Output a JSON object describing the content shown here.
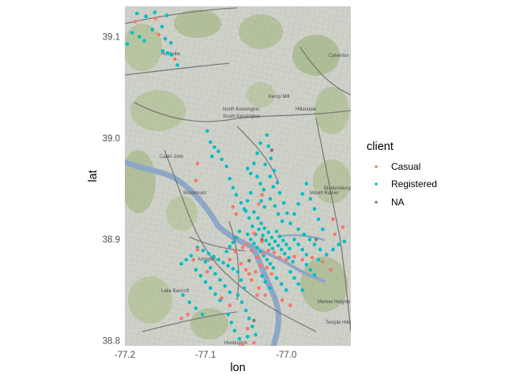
{
  "chart_data": {
    "type": "scatter",
    "background": "street map tiles (Washington, DC area)",
    "xlabel": "lon",
    "ylabel": "lat",
    "xlim": [
      -77.2,
      -76.92
    ],
    "ylim": [
      38.795,
      39.13
    ],
    "x_ticks": [
      {
        "value": -77.2,
        "label": "-77.2"
      },
      {
        "value": -77.1,
        "label": "-77.1"
      },
      {
        "value": -77.0,
        "label": "-77.0"
      }
    ],
    "y_ticks": [
      {
        "value": 38.8,
        "label": "38.8"
      },
      {
        "value": 38.9,
        "label": "38.9"
      },
      {
        "value": 39.0,
        "label": "39.0"
      },
      {
        "value": 39.1,
        "label": "39.1"
      }
    ],
    "legend": {
      "title": "client",
      "position": "right",
      "entries": [
        {
          "label": "Casual",
          "color": "#F8766D"
        },
        {
          "label": "Registered",
          "color": "#00BFC4"
        },
        {
          "label": "NA",
          "color": "#7F7F7F"
        }
      ]
    },
    "map_labels": [
      "Rockville",
      "Kemp Mill",
      "Hillandale",
      "Calverton",
      "North Kensington",
      "South Kensington",
      "Cabin John",
      "Brookmont",
      "Mount Rainier",
      "Bladensburg",
      "Arlington",
      "Lake Barcroft",
      "Marlow Heights",
      "Temple Hills",
      "Huntington"
    ],
    "series": [
      {
        "name": "Registered",
        "color": "#00BFC4",
        "points": [
          [
            -77.185,
            39.123
          ],
          [
            -77.174,
            39.12
          ],
          [
            -77.163,
            39.124
          ],
          [
            -77.148,
            39.121
          ],
          [
            -77.191,
            39.104
          ],
          [
            -77.182,
            39.1
          ],
          [
            -77.176,
            39.096
          ],
          [
            -77.166,
            39.107
          ],
          [
            -77.154,
            39.11
          ],
          [
            -77.15,
            39.098
          ],
          [
            -77.143,
            39.094
          ],
          [
            -77.153,
            39.086
          ],
          [
            -77.147,
            39.084
          ],
          [
            -77.142,
            39.082
          ],
          [
            -77.135,
            39.072
          ],
          [
            -77.197,
            39.093
          ],
          [
            -77.098,
            39.007
          ],
          [
            -77.094,
            38.996
          ],
          [
            -77.089,
            38.991
          ],
          [
            -77.084,
            38.987
          ],
          [
            -77.092,
            38.982
          ],
          [
            -77.08,
            38.979
          ],
          [
            -77.074,
            38.972
          ],
          [
            -77.07,
            38.96
          ],
          [
            -77.066,
            38.951
          ],
          [
            -77.062,
            38.944
          ],
          [
            -77.056,
            38.936
          ],
          [
            -77.05,
            38.928
          ],
          [
            -77.046,
            38.921
          ],
          [
            -77.042,
            38.913
          ],
          [
            -77.038,
            38.905
          ],
          [
            -77.024,
            39.003
          ],
          [
            -77.022,
            38.992
          ],
          [
            -77.019,
            38.98
          ],
          [
            -77.015,
            38.968
          ],
          [
            -77.011,
            38.956
          ],
          [
            -77.008,
            38.946
          ],
          [
            -77.003,
            38.936
          ],
          [
            -76.999,
            38.926
          ],
          [
            -76.995,
            38.916
          ],
          [
            -77.036,
            38.962
          ],
          [
            -77.032,
            38.955
          ],
          [
            -77.028,
            38.949
          ],
          [
            -77.031,
            38.938
          ],
          [
            -77.027,
            38.932
          ],
          [
            -77.02,
            38.94
          ],
          [
            -77.014,
            38.933
          ],
          [
            -77.01,
            38.925
          ],
          [
            -77.005,
            38.918
          ],
          [
            -77.044,
            38.946
          ],
          [
            -77.048,
            38.938
          ],
          [
            -77.052,
            38.93
          ],
          [
            -77.04,
            38.927
          ],
          [
            -77.035,
            38.921
          ],
          [
            -77.031,
            38.916
          ],
          [
            -77.027,
            38.911
          ],
          [
            -77.022,
            38.907
          ],
          [
            -77.018,
            38.902
          ],
          [
            -77.014,
            38.898
          ],
          [
            -77.01,
            38.894
          ],
          [
            -77.006,
            38.89
          ],
          [
            -77.002,
            38.886
          ],
          [
            -76.997,
            38.882
          ],
          [
            -76.992,
            38.878
          ],
          [
            -77.048,
            38.905
          ],
          [
            -77.044,
            38.9
          ],
          [
            -77.04,
            38.896
          ],
          [
            -77.036,
            38.892
          ],
          [
            -77.032,
            38.888
          ],
          [
            -77.028,
            38.884
          ],
          [
            -77.024,
            38.88
          ],
          [
            -77.02,
            38.876
          ],
          [
            -77.016,
            38.872
          ],
          [
            -77.058,
            38.908
          ],
          [
            -77.062,
            38.902
          ],
          [
            -77.066,
            38.897
          ],
          [
            -77.07,
            38.893
          ],
          [
            -77.074,
            38.888
          ],
          [
            -77.034,
            38.91
          ],
          [
            -77.029,
            38.904
          ],
          [
            -77.025,
            38.899
          ],
          [
            -77.021,
            38.895
          ],
          [
            -77.017,
            38.891
          ],
          [
            -77.012,
            38.908
          ],
          [
            -77.008,
            38.903
          ],
          [
            -77.004,
            38.899
          ],
          [
            -77.0,
            38.895
          ],
          [
            -76.996,
            38.891
          ],
          [
            -76.99,
            38.9
          ],
          [
            -76.985,
            38.895
          ],
          [
            -76.98,
            38.89
          ],
          [
            -76.975,
            38.885
          ],
          [
            -76.985,
            38.91
          ],
          [
            -76.978,
            38.905
          ],
          [
            -76.971,
            38.9
          ],
          [
            -76.965,
            38.895
          ],
          [
            -76.958,
            38.89
          ],
          [
            -76.99,
            38.925
          ],
          [
            -76.985,
            38.935
          ],
          [
            -76.98,
            38.945
          ],
          [
            -76.975,
            38.955
          ],
          [
            -76.97,
            38.94
          ],
          [
            -76.965,
            38.93
          ],
          [
            -76.96,
            38.92
          ],
          [
            -76.955,
            38.91
          ],
          [
            -77.048,
            38.97
          ],
          [
            -77.044,
            38.965
          ],
          [
            -77.04,
            38.975
          ],
          [
            -77.036,
            38.985
          ],
          [
            -77.032,
            38.995
          ],
          [
            -77.026,
            38.974
          ],
          [
            -77.02,
            38.962
          ],
          [
            -77.016,
            38.952
          ],
          [
            -77.11,
            38.892
          ],
          [
            -77.103,
            38.889
          ],
          [
            -77.096,
            38.886
          ],
          [
            -77.09,
            38.883
          ],
          [
            -77.084,
            38.88
          ],
          [
            -77.078,
            38.877
          ],
          [
            -77.072,
            38.874
          ],
          [
            -77.066,
            38.871
          ],
          [
            -77.1,
            38.878
          ],
          [
            -77.094,
            38.872
          ],
          [
            -77.088,
            38.866
          ],
          [
            -77.082,
            38.86
          ],
          [
            -77.076,
            38.854
          ],
          [
            -77.07,
            38.848
          ],
          [
            -77.118,
            38.884
          ],
          [
            -77.124,
            38.88
          ],
          [
            -77.13,
            38.876
          ],
          [
            -77.112,
            38.87
          ],
          [
            -77.106,
            38.864
          ],
          [
            -77.1,
            38.858
          ],
          [
            -77.094,
            38.852
          ],
          [
            -77.088,
            38.846
          ],
          [
            -77.082,
            38.84
          ],
          [
            -77.128,
            38.845
          ],
          [
            -77.12,
            38.838
          ],
          [
            -77.112,
            38.832
          ],
          [
            -77.104,
            38.826
          ],
          [
            -77.06,
            38.868
          ],
          [
            -77.056,
            38.86
          ],
          [
            -77.052,
            38.852
          ],
          [
            -77.06,
            38.845
          ],
          [
            -77.055,
            38.838
          ],
          [
            -77.05,
            38.83
          ],
          [
            -77.046,
            38.822
          ],
          [
            -77.042,
            38.814
          ],
          [
            -77.038,
            38.806
          ],
          [
            -77.048,
            38.804
          ],
          [
            -77.058,
            38.802
          ],
          [
            -77.064,
            38.81
          ],
          [
            -77.068,
            38.818
          ],
          [
            -77.072,
            38.826
          ],
          [
            -76.995,
            38.868
          ],
          [
            -76.99,
            38.862
          ],
          [
            -76.985,
            38.856
          ],
          [
            -76.98,
            38.85
          ],
          [
            -76.975,
            38.875
          ],
          [
            -76.97,
            38.87
          ],
          [
            -76.965,
            38.865
          ],
          [
            -76.96,
            38.88
          ],
          [
            -76.95,
            38.885
          ],
          [
            -76.942,
            38.89
          ],
          [
            -76.935,
            38.895
          ],
          [
            -76.928,
            38.898
          ],
          [
            -77.012,
            38.862
          ],
          [
            -77.006,
            38.856
          ],
          [
            -77.0,
            38.85
          ],
          [
            -77.03,
            38.864
          ],
          [
            -77.026,
            38.858
          ],
          [
            -77.02,
            38.852
          ]
        ]
      },
      {
        "name": "Casual",
        "color": "#F8766D",
        "points": [
          [
            -77.187,
            39.115
          ],
          [
            -77.158,
            39.102
          ],
          [
            -77.138,
            39.078
          ],
          [
            -77.162,
            39.118
          ],
          [
            -77.11,
            38.975
          ],
          [
            -77.112,
            38.958
          ],
          [
            -77.066,
            38.932
          ],
          [
            -77.062,
            38.925
          ],
          [
            -77.05,
            38.895
          ],
          [
            -77.043,
            38.889
          ],
          [
            -77.036,
            38.882
          ],
          [
            -77.029,
            38.886
          ],
          [
            -77.022,
            38.889
          ],
          [
            -77.015,
            38.887
          ],
          [
            -77.03,
            38.898
          ],
          [
            -77.008,
            38.882
          ],
          [
            -77.04,
            38.906
          ],
          [
            -77.054,
            38.892
          ],
          [
            -77.063,
            38.888
          ],
          [
            -77.07,
            38.88
          ],
          [
            -77.056,
            38.876
          ],
          [
            -77.05,
            38.87
          ],
          [
            -77.046,
            38.866
          ],
          [
            -77.043,
            38.86
          ],
          [
            -77.038,
            38.868
          ],
          [
            -77.032,
            38.874
          ],
          [
            -77.024,
            38.872
          ],
          [
            -77.018,
            38.866
          ],
          [
            -77.0,
            38.88
          ],
          [
            -76.99,
            38.883
          ],
          [
            -76.98,
            38.88
          ],
          [
            -76.968,
            38.882
          ],
          [
            -76.955,
            38.878
          ],
          [
            -76.945,
            38.87
          ],
          [
            -76.94,
            38.905
          ],
          [
            -76.942,
            38.92
          ],
          [
            -76.93,
            38.912
          ],
          [
            -77.11,
            38.89
          ],
          [
            -77.115,
            38.88
          ],
          [
            -77.098,
            38.868
          ],
          [
            -77.08,
            38.842
          ],
          [
            -77.07,
            38.835
          ],
          [
            -77.122,
            38.826
          ],
          [
            -77.13,
            38.822
          ],
          [
            -77.048,
            38.812
          ],
          [
            -77.04,
            38.798
          ],
          [
            -77.054,
            38.796
          ],
          [
            -77.036,
            38.845
          ],
          [
            -77.034,
            38.852
          ],
          [
            -77.026,
            38.845
          ],
          [
            -77.005,
            38.84
          ],
          [
            -76.995,
            38.835
          ],
          [
            -77.034,
            38.935
          ],
          [
            -77.03,
            38.944
          ]
        ]
      },
      {
        "name": "NA",
        "color": "#7F7F7F",
        "points": [
          [
            -77.018,
            38.988
          ],
          [
            -77.03,
            38.9
          ],
          [
            -77.046,
            38.879
          ],
          [
            -77.04,
            38.82
          ],
          [
            -76.963,
            38.9
          ]
        ]
      }
    ]
  }
}
